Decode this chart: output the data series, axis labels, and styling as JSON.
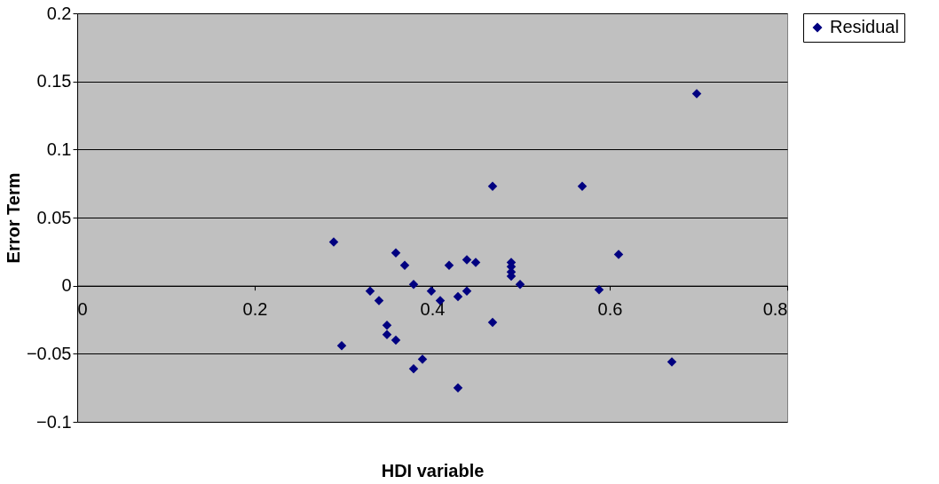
{
  "chart_data": {
    "type": "scatter",
    "xlabel": "HDI variable",
    "ylabel": "Error Term",
    "xlim": [
      0,
      0.8
    ],
    "xticks": [
      0,
      0.2,
      0.4,
      0.6,
      0.8
    ],
    "ylim": [
      -0.1,
      0.2
    ],
    "yticks": [
      -0.1,
      -0.05,
      0,
      0.05,
      0.1,
      0.15,
      0.2
    ],
    "grid": "y",
    "legend": "right",
    "marker": "diamond",
    "series": [
      {
        "name": "Residual",
        "color": "#000080",
        "x": [
          0.289,
          0.298,
          0.33,
          0.34,
          0.349,
          0.349,
          0.359,
          0.359,
          0.369,
          0.379,
          0.379,
          0.389,
          0.399,
          0.409,
          0.419,
          0.429,
          0.429,
          0.439,
          0.439,
          0.449,
          0.468,
          0.468,
          0.489,
          0.489,
          0.489,
          0.489,
          0.499,
          0.569,
          0.588,
          0.61,
          0.67,
          0.698
        ],
        "values": [
          0.032,
          -0.044,
          -0.004,
          -0.011,
          -0.029,
          -0.036,
          0.024,
          -0.04,
          0.015,
          0.001,
          -0.061,
          -0.054,
          -0.004,
          -0.011,
          0.015,
          -0.008,
          -0.075,
          0.019,
          -0.004,
          0.017,
          0.073,
          -0.027,
          0.017,
          0.014,
          0.01,
          0.007,
          0.001,
          0.073,
          -0.003,
          0.023,
          -0.056,
          0.141
        ]
      }
    ]
  }
}
